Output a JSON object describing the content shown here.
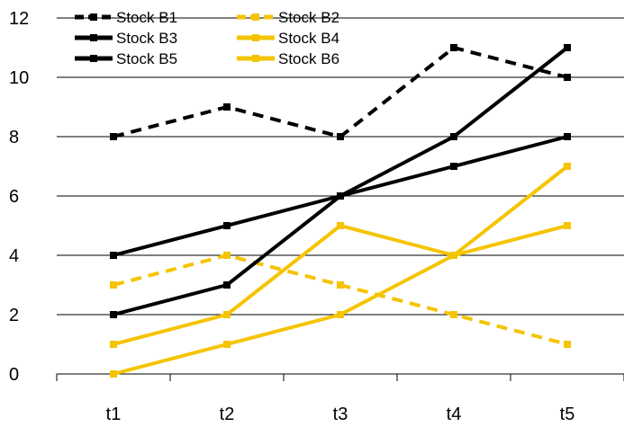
{
  "chart_data": {
    "type": "line",
    "title": "",
    "xlabel": "",
    "ylabel": "",
    "categories": [
      "t1",
      "t2",
      "t3",
      "t4",
      "t5"
    ],
    "ylim": [
      0,
      12
    ],
    "yticks": [
      0,
      2,
      4,
      6,
      8,
      10,
      12
    ],
    "grid": "horizontal",
    "legend_position": "top-left",
    "series": [
      {
        "name": "Stock B1",
        "values": [
          8,
          9,
          8,
          11,
          10
        ],
        "color": "#000000",
        "dashed": true
      },
      {
        "name": "Stock B2",
        "values": [
          3,
          4,
          3,
          2,
          1
        ],
        "color": "#F5C400",
        "dashed": true
      },
      {
        "name": "Stock B3",
        "values": [
          4,
          5,
          6,
          7,
          8
        ],
        "color": "#000000",
        "dashed": false
      },
      {
        "name": "Stock B4",
        "values": [
          1,
          2,
          5,
          4,
          5
        ],
        "color": "#F5C400",
        "dashed": false
      },
      {
        "name": "Stock B5",
        "values": [
          2,
          3,
          6,
          8,
          11
        ],
        "color": "#000000",
        "dashed": false
      },
      {
        "name": "Stock B6",
        "values": [
          0,
          1,
          2,
          4,
          7
        ],
        "color": "#F5C400",
        "dashed": false
      }
    ]
  }
}
